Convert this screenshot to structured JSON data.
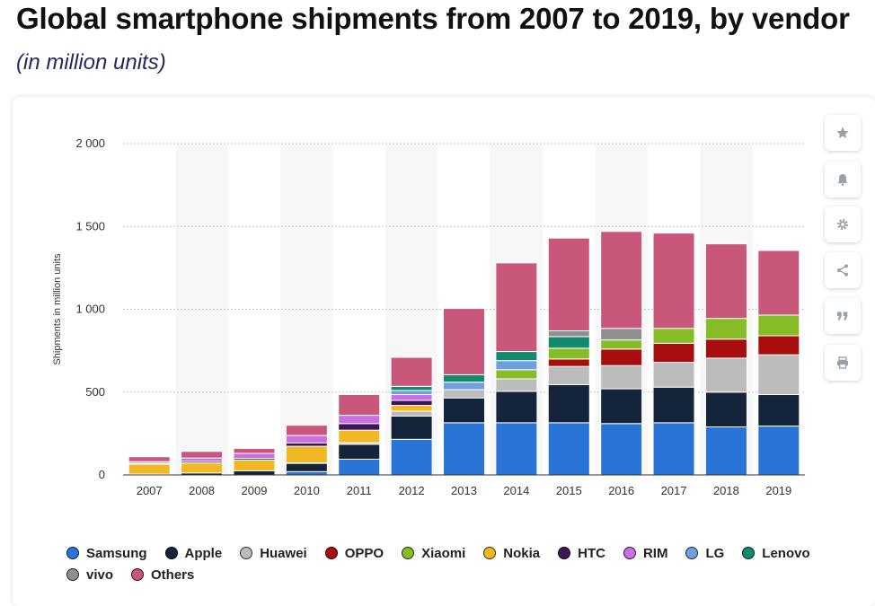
{
  "header": {
    "title": "Global smartphone shipments from 2007 to 2019, by vendor",
    "subtitle": "(in million units)"
  },
  "toolbar": {
    "icons": [
      "star-icon",
      "bell-icon",
      "gear-icon",
      "share-icon",
      "quote-icon",
      "print-icon"
    ]
  },
  "chart_data": {
    "type": "bar",
    "stacked": true,
    "categories": [
      "2007",
      "2008",
      "2009",
      "2010",
      "2011",
      "2012",
      "2013",
      "2014",
      "2015",
      "2016",
      "2017",
      "2018",
      "2019"
    ],
    "ylabel": "Shipments in million units",
    "ylim": [
      0,
      2000
    ],
    "yticks": [
      0,
      500,
      1000,
      1500,
      2000
    ],
    "ytick_labels": [
      "0",
      "500",
      "1 000",
      "1 500",
      "2 000"
    ],
    "grid": true,
    "legend_position": "bottom",
    "series": [
      {
        "name": "Samsung",
        "color": "#2a74d8",
        "values": [
          0,
          0,
          0,
          20,
          95,
          215,
          315,
          315,
          315,
          310,
          315,
          290,
          295
        ]
      },
      {
        "name": "Apple",
        "color": "#13243b",
        "values": [
          5,
          12,
          25,
          50,
          90,
          140,
          150,
          190,
          230,
          210,
          215,
          210,
          190
        ]
      },
      {
        "name": "Huawei",
        "color": "#bcbcbc",
        "values": [
          0,
          0,
          0,
          3,
          10,
          30,
          50,
          75,
          110,
          140,
          150,
          205,
          240
        ]
      },
      {
        "name": "OPPO",
        "color": "#a80e0e",
        "values": [
          0,
          0,
          0,
          0,
          0,
          0,
          0,
          0,
          45,
          100,
          115,
          115,
          115
        ]
      },
      {
        "name": "Xiaomi",
        "color": "#86bc25",
        "values": [
          0,
          0,
          0,
          0,
          0,
          0,
          0,
          55,
          65,
          55,
          90,
          125,
          125
        ]
      },
      {
        "name": "Nokia",
        "color": "#f0b823",
        "values": [
          60,
          60,
          65,
          100,
          75,
          35,
          0,
          0,
          0,
          0,
          0,
          0,
          0
        ]
      },
      {
        "name": "HTC",
        "color": "#3d1658",
        "values": [
          5,
          10,
          10,
          20,
          40,
          30,
          0,
          0,
          0,
          0,
          0,
          0,
          0
        ]
      },
      {
        "name": "RIM",
        "color": "#c96fe3",
        "values": [
          10,
          20,
          30,
          45,
          50,
          35,
          0,
          0,
          0,
          0,
          0,
          0,
          0
        ]
      },
      {
        "name": "LG",
        "color": "#6f9fdc",
        "values": [
          0,
          0,
          0,
          0,
          0,
          25,
          45,
          55,
          0,
          0,
          0,
          0,
          0
        ]
      },
      {
        "name": "Lenovo",
        "color": "#13896e",
        "values": [
          0,
          0,
          0,
          0,
          0,
          25,
          45,
          55,
          70,
          0,
          0,
          0,
          0
        ]
      },
      {
        "name": "vivo",
        "color": "#8f8f8f",
        "values": [
          0,
          0,
          0,
          0,
          0,
          0,
          0,
          0,
          35,
          70,
          0,
          0,
          0
        ]
      },
      {
        "name": "Others",
        "color": "#c8577a",
        "values": [
          30,
          40,
          30,
          62,
          125,
          175,
          400,
          535,
          560,
          585,
          575,
          450,
          390
        ]
      }
    ]
  }
}
